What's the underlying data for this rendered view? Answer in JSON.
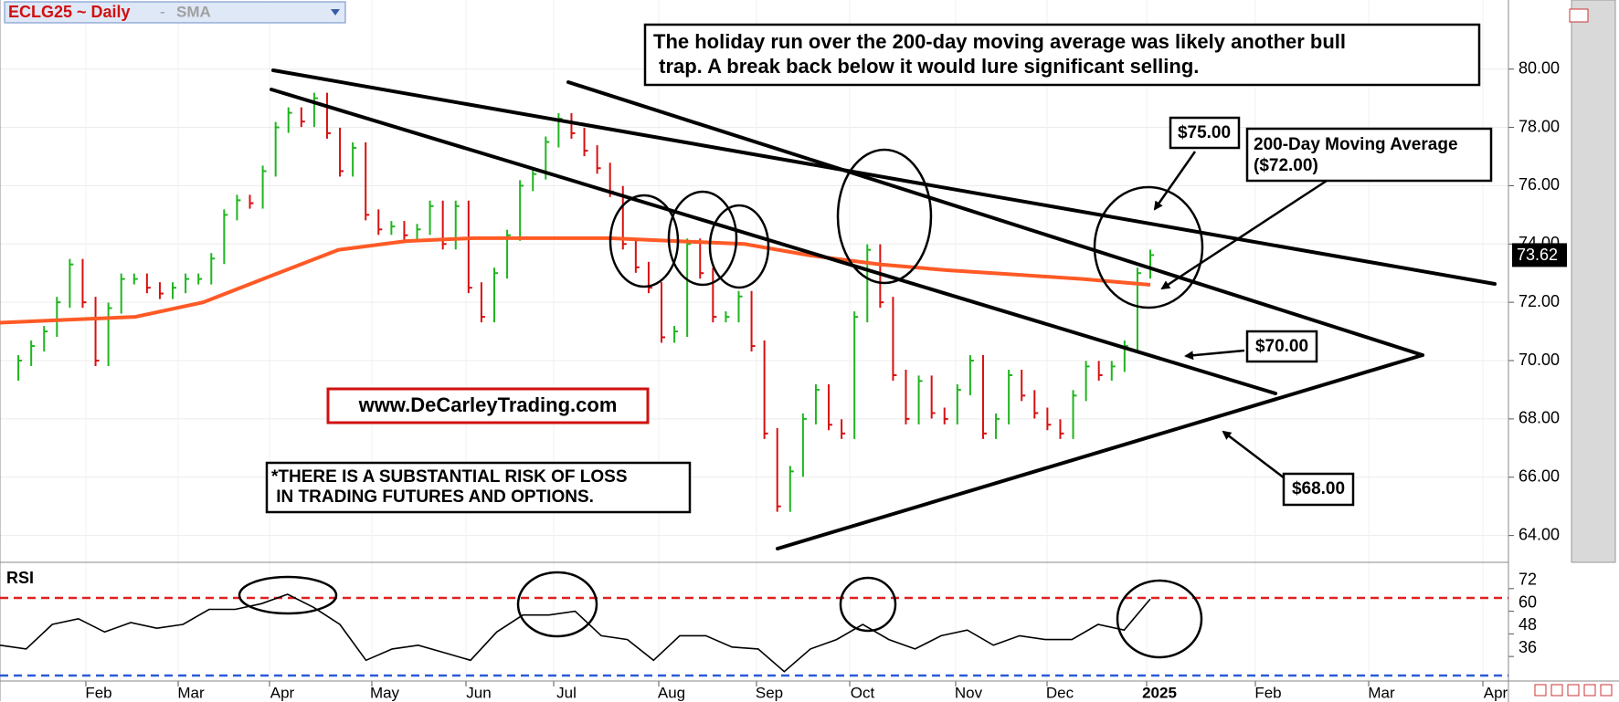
{
  "chart_data": {
    "type": "price",
    "title": "ECLG25 ~ Daily",
    "indicator": "SMA",
    "up_color": "#1fb51f",
    "down_color": "#d81010",
    "sma_color": "#ff5a26",
    "closes": [
      69.5,
      70.0,
      70.5,
      71.0,
      72.0,
      73.3,
      72.0,
      70.0,
      71.8,
      72.8,
      72.8,
      72.5,
      72.3,
      72.5,
      72.8,
      72.8,
      73.5,
      75.0,
      75.5,
      75.4,
      76.5,
      78.0,
      78.5,
      78.2,
      79.0,
      77.8,
      76.5,
      77.3,
      75.0,
      74.5,
      74.6,
      74.3,
      74.5,
      75.3,
      74.0,
      75.3,
      72.5,
      71.5,
      73.0,
      74.3,
      76.0,
      76.4,
      77.5,
      78.3,
      77.8,
      77.2,
      76.6,
      75.8,
      74.0,
      73.2,
      72.5,
      70.8,
      71.0,
      74.0,
      73.0,
      71.5,
      71.5,
      72.2,
      70.5,
      67.5,
      65.0,
      66.2,
      68.0,
      69.0,
      67.8,
      67.5,
      71.5,
      73.8,
      72.0,
      69.5,
      68.0,
      69.3,
      68.2,
      68.0,
      69.0,
      70.0,
      67.5,
      68.0,
      69.5,
      68.8,
      68.2,
      67.8,
      67.5,
      68.8,
      69.8,
      69.5,
      69.8,
      70.5,
      73.0,
      73.62
    ],
    "sma": [
      71.3,
      71.4,
      71.5,
      72.0,
      72.9,
      73.8,
      74.1,
      74.2,
      74.2,
      74.2,
      74.1,
      74.0,
      73.6,
      73.3,
      73.1,
      72.95,
      72.8,
      72.6
    ],
    "last_value": 73.62,
    "ylim": [
      63.08,
      82.37
    ],
    "yticks": [
      {
        "value": 64,
        "label": "64.00"
      },
      {
        "value": 66,
        "label": "66.00"
      },
      {
        "value": 68,
        "label": "68.00"
      },
      {
        "value": 70,
        "label": "70.00"
      },
      {
        "value": 72,
        "label": "72.00"
      },
      {
        "value": 74,
        "label": "74.00"
      },
      {
        "value": 76,
        "label": "76.00"
      },
      {
        "value": 78,
        "label": "78.00"
      },
      {
        "value": 80,
        "label": "80.00"
      }
    ],
    "x_labels": [
      "Feb",
      "Mar",
      "Apr",
      "May",
      "Jun",
      "Jul",
      "Aug",
      "Sep",
      "Oct",
      "Nov",
      "Dec",
      "2025",
      "Feb",
      "Mar",
      "Apr"
    ],
    "grid": true,
    "rsi": {
      "title": "RSI",
      "color": "#000000",
      "values": [
        42,
        40,
        53,
        56,
        49,
        54,
        51,
        53,
        61,
        61,
        64,
        69,
        62,
        53,
        34,
        40,
        42,
        38,
        34,
        49,
        58,
        58,
        60,
        47,
        45,
        34,
        47,
        47,
        41,
        40,
        28,
        40,
        45,
        53,
        45,
        40,
        47,
        50,
        42,
        47,
        45,
        45,
        53,
        50,
        66.5
      ],
      "ylim": [
        23,
        84
      ],
      "yticks": [
        36,
        48,
        60,
        72
      ]
    },
    "annotations": {
      "headline": [
        "The holiday run over the 200-day moving average was likely another bull",
        " trap. A break back below it would lure significant selling."
      ],
      "level_75": "$75.00",
      "sma_note": [
        "200-Day Moving Average",
        "($72.00)"
      ],
      "level_70": "$70.00",
      "level_68": "$68.00",
      "website": "www.DeCarleyTrading.com",
      "disclaimer": [
        "*THERE IS A SUBSTANTIAL RISK OF LOSS",
        " IN TRADING FUTURES AND OPTIONS."
      ]
    }
  }
}
